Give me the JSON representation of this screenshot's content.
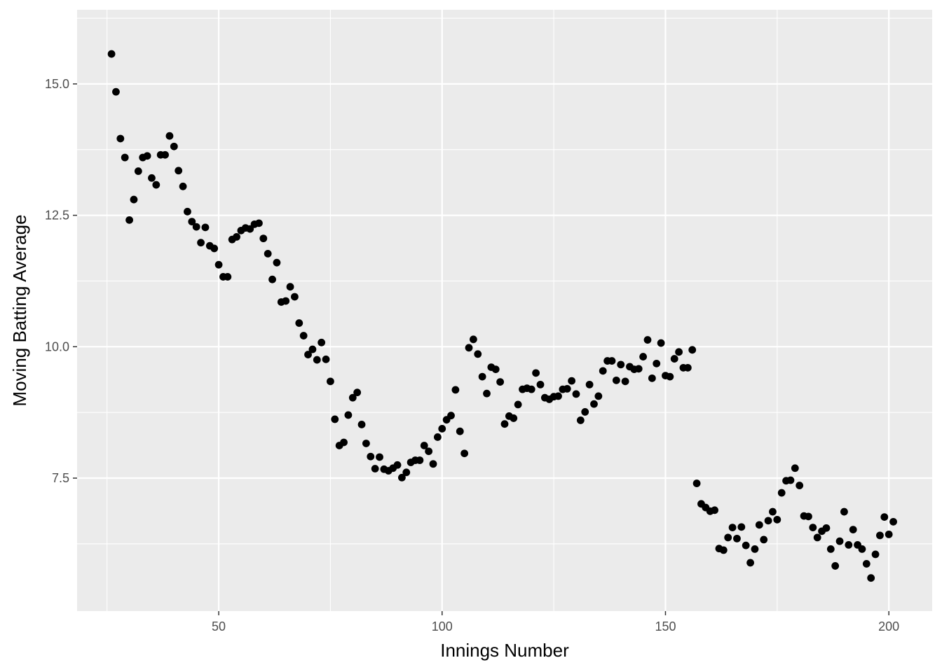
{
  "chart_data": {
    "type": "scatter",
    "title": "",
    "xlabel": "Innings Number",
    "ylabel": "Moving Batting Average",
    "xlim": [
      18.3,
      209.7
    ],
    "ylim": [
      4.97,
      16.41
    ],
    "x_ticks": [
      {
        "value": 50,
        "label": "50"
      },
      {
        "value": 100,
        "label": "100"
      },
      {
        "value": 150,
        "label": "150"
      },
      {
        "value": 200,
        "label": "200"
      }
    ],
    "y_ticks": [
      {
        "value": 7.5,
        "label": "7.5"
      },
      {
        "value": 10,
        "label": "10.0"
      },
      {
        "value": 12.5,
        "label": "12.5"
      },
      {
        "value": 15,
        "label": "15.0"
      }
    ],
    "grid": true,
    "background": "#ebebeb",
    "point_color": "#000000",
    "x": [
      26,
      27,
      28,
      29,
      30,
      31,
      32,
      33,
      34,
      35,
      36,
      37,
      38,
      39,
      40,
      41,
      42,
      43,
      44,
      45,
      46,
      47,
      48,
      49,
      50,
      51,
      52,
      53,
      54,
      55,
      56,
      57,
      58,
      59,
      60,
      61,
      62,
      63,
      64,
      65,
      66,
      67,
      68,
      69,
      70,
      71,
      72,
      73,
      74,
      75,
      76,
      77,
      78,
      79,
      80,
      81,
      82,
      83,
      84,
      85,
      86,
      87,
      88,
      89,
      90,
      91,
      92,
      93,
      94,
      95,
      96,
      97,
      98,
      99,
      100,
      101,
      102,
      103,
      104,
      105,
      106,
      107,
      108,
      109,
      110,
      111,
      112,
      113,
      114,
      115,
      116,
      117,
      118,
      119,
      120,
      121,
      122,
      123,
      124,
      125,
      126,
      127,
      128,
      129,
      130,
      131,
      132,
      133,
      134,
      135,
      136,
      137,
      138,
      139,
      140,
      141,
      142,
      143,
      144,
      145,
      146,
      147,
      148,
      149,
      150,
      151,
      152,
      153,
      154,
      155,
      156,
      157,
      158,
      159,
      160,
      161,
      162,
      163,
      164,
      165,
      166,
      167,
      168,
      169,
      170,
      171,
      172,
      173,
      174,
      175,
      176,
      177,
      178,
      179,
      180,
      181,
      182,
      183,
      184,
      185,
      186,
      187,
      188,
      189,
      190,
      191,
      192,
      193,
      194,
      195,
      196,
      197,
      198,
      199,
      200,
      201
    ],
    "y": [
      15.57,
      14.85,
      13.96,
      13.6,
      12.41,
      12.8,
      13.34,
      13.6,
      13.63,
      13.21,
      13.08,
      13.65,
      13.65,
      14.01,
      13.81,
      13.35,
      13.05,
      12.57,
      12.38,
      12.28,
      11.98,
      12.27,
      11.92,
      11.87,
      11.56,
      11.33,
      11.33,
      12.04,
      12.09,
      12.21,
      12.26,
      12.24,
      12.33,
      12.35,
      12.06,
      11.77,
      11.28,
      11.6,
      10.85,
      10.87,
      11.14,
      10.95,
      10.45,
      10.21,
      9.85,
      9.95,
      9.75,
      10.08,
      9.76,
      9.34,
      8.62,
      8.12,
      8.18,
      8.7,
      9.03,
      9.13,
      8.52,
      8.16,
      7.91,
      7.68,
      7.9,
      7.67,
      7.64,
      7.69,
      7.75,
      7.51,
      7.61,
      7.8,
      7.84,
      7.84,
      8.12,
      8.01,
      7.77,
      8.28,
      8.44,
      8.61,
      8.69,
      9.18,
      8.39,
      7.97,
      9.98,
      10.14,
      9.86,
      9.43,
      9.11,
      9.61,
      9.57,
      9.33,
      8.53,
      8.68,
      8.64,
      8.9,
      9.19,
      9.21,
      9.19,
      9.5,
      9.28,
      9.03,
      9.0,
      9.05,
      9.06,
      9.19,
      9.2,
      9.35,
      9.1,
      8.6,
      8.76,
      9.28,
      8.91,
      9.06,
      9.54,
      9.73,
      9.73,
      9.36,
      9.66,
      9.34,
      9.62,
      9.57,
      9.58,
      9.81,
      10.13,
      9.4,
      9.68,
      10.07,
      9.45,
      9.43,
      9.77,
      9.9,
      9.6,
      9.6,
      9.94,
      7.4,
      7.01,
      6.94,
      6.87,
      6.89,
      6.16,
      6.13,
      6.37,
      6.56,
      6.35,
      6.57,
      6.22,
      5.89,
      6.15,
      6.61,
      6.33,
      6.69,
      6.86,
      6.71,
      7.22,
      7.45,
      7.46,
      7.69,
      7.36,
      6.78,
      6.77,
      6.56,
      6.37,
      6.49,
      6.55,
      6.15,
      5.83,
      6.3,
      6.86,
      6.23,
      6.52,
      6.23,
      6.15,
      5.87,
      5.6,
      6.05,
      6.41,
      6.76,
      6.43,
      6.67
    ]
  }
}
